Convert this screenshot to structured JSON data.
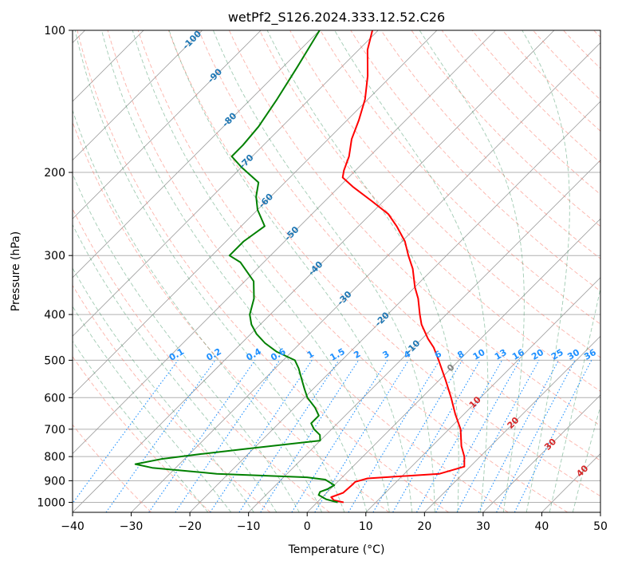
{
  "chart_data": {
    "type": "line",
    "title": "wetPf2_S126.2024.333.12.52.C26",
    "xlabel": "Temperature (°C)",
    "ylabel": "Pressure (hPa)",
    "xlim": [
      -40,
      50
    ],
    "ylim": [
      1050,
      100
    ],
    "yscale": "log",
    "skewed": true,
    "x_ticks": [
      -40,
      -30,
      -20,
      -10,
      0,
      10,
      20,
      30,
      40,
      50
    ],
    "x_tick_labels": [
      "−40",
      "−30",
      "−20",
      "−10",
      "0",
      "10",
      "20",
      "30",
      "40",
      "50"
    ],
    "y_ticks": [
      100,
      200,
      300,
      400,
      500,
      600,
      700,
      800,
      900,
      1000
    ],
    "y_tick_labels": [
      "100",
      "200",
      "300",
      "400",
      "500",
      "600",
      "700",
      "800",
      "900",
      "1000"
    ],
    "grid": true,
    "series": [
      {
        "key": "temperature",
        "color": "#ff0000",
        "points": [
          [
            1000,
            4.5
          ],
          [
            990,
            2.5
          ],
          [
            975,
            1.5
          ],
          [
            955,
            2.8
          ],
          [
            920,
            3.0
          ],
          [
            905,
            3.0
          ],
          [
            890,
            4.5
          ],
          [
            870,
            16.0
          ],
          [
            840,
            19.0
          ],
          [
            800,
            17.3
          ],
          [
            760,
            15.0
          ],
          [
            700,
            12.0
          ],
          [
            650,
            8.5
          ],
          [
            600,
            5.0
          ],
          [
            550,
            1.0
          ],
          [
            500,
            -3.5
          ],
          [
            470,
            -6.5
          ],
          [
            450,
            -9.0
          ],
          [
            420,
            -12.5
          ],
          [
            400,
            -14.5
          ],
          [
            370,
            -17.5
          ],
          [
            350,
            -20.0
          ],
          [
            320,
            -23.5
          ],
          [
            300,
            -26.5
          ],
          [
            280,
            -29.5
          ],
          [
            260,
            -33.5
          ],
          [
            245,
            -37.0
          ],
          [
            230,
            -42.0
          ],
          [
            215,
            -47.5
          ],
          [
            205,
            -51.0
          ],
          [
            198,
            -52.0
          ],
          [
            185,
            -53.5
          ],
          [
            170,
            -56.0
          ],
          [
            155,
            -58.0
          ],
          [
            140,
            -60.5
          ],
          [
            125,
            -64.0
          ],
          [
            110,
            -68.5
          ],
          [
            100,
            -71.0
          ]
        ]
      },
      {
        "key": "dewpoint",
        "color": "#008000",
        "points": [
          [
            1000,
            3.5
          ],
          [
            985,
            1.0
          ],
          [
            965,
            -1.0
          ],
          [
            950,
            -1.3
          ],
          [
            938,
            -0.5
          ],
          [
            920,
            0.0
          ],
          [
            905,
            -1.5
          ],
          [
            895,
            -2.5
          ],
          [
            885,
            -6.0
          ],
          [
            870,
            -22.0
          ],
          [
            845,
            -34.0
          ],
          [
            830,
            -37.5
          ],
          [
            810,
            -34.0
          ],
          [
            790,
            -28.0
          ],
          [
            770,
            -21.0
          ],
          [
            740,
            -10.0
          ],
          [
            720,
            -11.0
          ],
          [
            700,
            -13.0
          ],
          [
            680,
            -14.5
          ],
          [
            655,
            -14.5
          ],
          [
            630,
            -16.5
          ],
          [
            600,
            -19.5
          ],
          [
            575,
            -21.5
          ],
          [
            550,
            -23.5
          ],
          [
            520,
            -26.0
          ],
          [
            500,
            -28.0
          ],
          [
            480,
            -32.5
          ],
          [
            460,
            -36.0
          ],
          [
            440,
            -39.0
          ],
          [
            420,
            -41.5
          ],
          [
            400,
            -43.5
          ],
          [
            370,
            -45.5
          ],
          [
            340,
            -48.5
          ],
          [
            310,
            -54.0
          ],
          [
            300,
            -57.0
          ],
          [
            280,
            -57.0
          ],
          [
            260,
            -56.0
          ],
          [
            240,
            -60.0
          ],
          [
            225,
            -62.5
          ],
          [
            210,
            -64.5
          ],
          [
            195,
            -70.0
          ],
          [
            185,
            -73.5
          ],
          [
            175,
            -73.5
          ],
          [
            160,
            -74.0
          ],
          [
            140,
            -75.5
          ],
          [
            120,
            -77.5
          ],
          [
            100,
            -80.0
          ]
        ]
      }
    ],
    "background_lines": {
      "dry_adiabat_color": "#fa8072",
      "moist_adiabat_color": "#2e8b57",
      "mixing_ratio_color": "#1e90ff",
      "isotherm_color": "#808080"
    },
    "annotations": {
      "mixing_ratio_labels": [
        "0.1",
        "0.2",
        "0.4",
        "0.6",
        "1",
        "1.5",
        "2",
        "3",
        "4",
        "6",
        "8",
        "10",
        "13",
        "16",
        "20",
        "25",
        "30",
        "36"
      ],
      "mixing_ratio_values": [
        0.1,
        0.2,
        0.4,
        0.6,
        1,
        1.5,
        2,
        3,
        4,
        6,
        8,
        10,
        13,
        16,
        20,
        25,
        30,
        36
      ],
      "blue_isotherm_labels": [
        {
          "text": "-100",
          "temp": -100,
          "pressure": 105
        },
        {
          "text": "-90",
          "temp": -90,
          "pressure": 125
        },
        {
          "text": "-80",
          "temp": -80,
          "pressure": 155
        },
        {
          "text": "-70",
          "temp": -70,
          "pressure": 190
        },
        {
          "text": "-60",
          "temp": -60,
          "pressure": 230
        },
        {
          "text": "-50",
          "temp": -50,
          "pressure": 270
        },
        {
          "text": "-40",
          "temp": -40,
          "pressure": 320
        },
        {
          "text": "-30",
          "temp": -30,
          "pressure": 370
        },
        {
          "text": "-20",
          "temp": -20,
          "pressure": 410
        },
        {
          "text": "-10",
          "temp": -10,
          "pressure": 470
        }
      ],
      "gray_isotherm_label": {
        "text": "0",
        "temp": 0,
        "pressure": 520
      },
      "red_isotherm_labels": [
        {
          "text": "10",
          "temp": 10,
          "pressure": 615
        },
        {
          "text": "20",
          "temp": 20,
          "pressure": 680
        },
        {
          "text": "30",
          "temp": 30,
          "pressure": 755
        },
        {
          "text": "40",
          "temp": 40,
          "pressure": 860
        }
      ],
      "blue_label_color": "#1f77b4",
      "mixing_label_color": "#1e90ff",
      "red_label_color": "#d62728",
      "gray_label_color": "#808080"
    }
  }
}
